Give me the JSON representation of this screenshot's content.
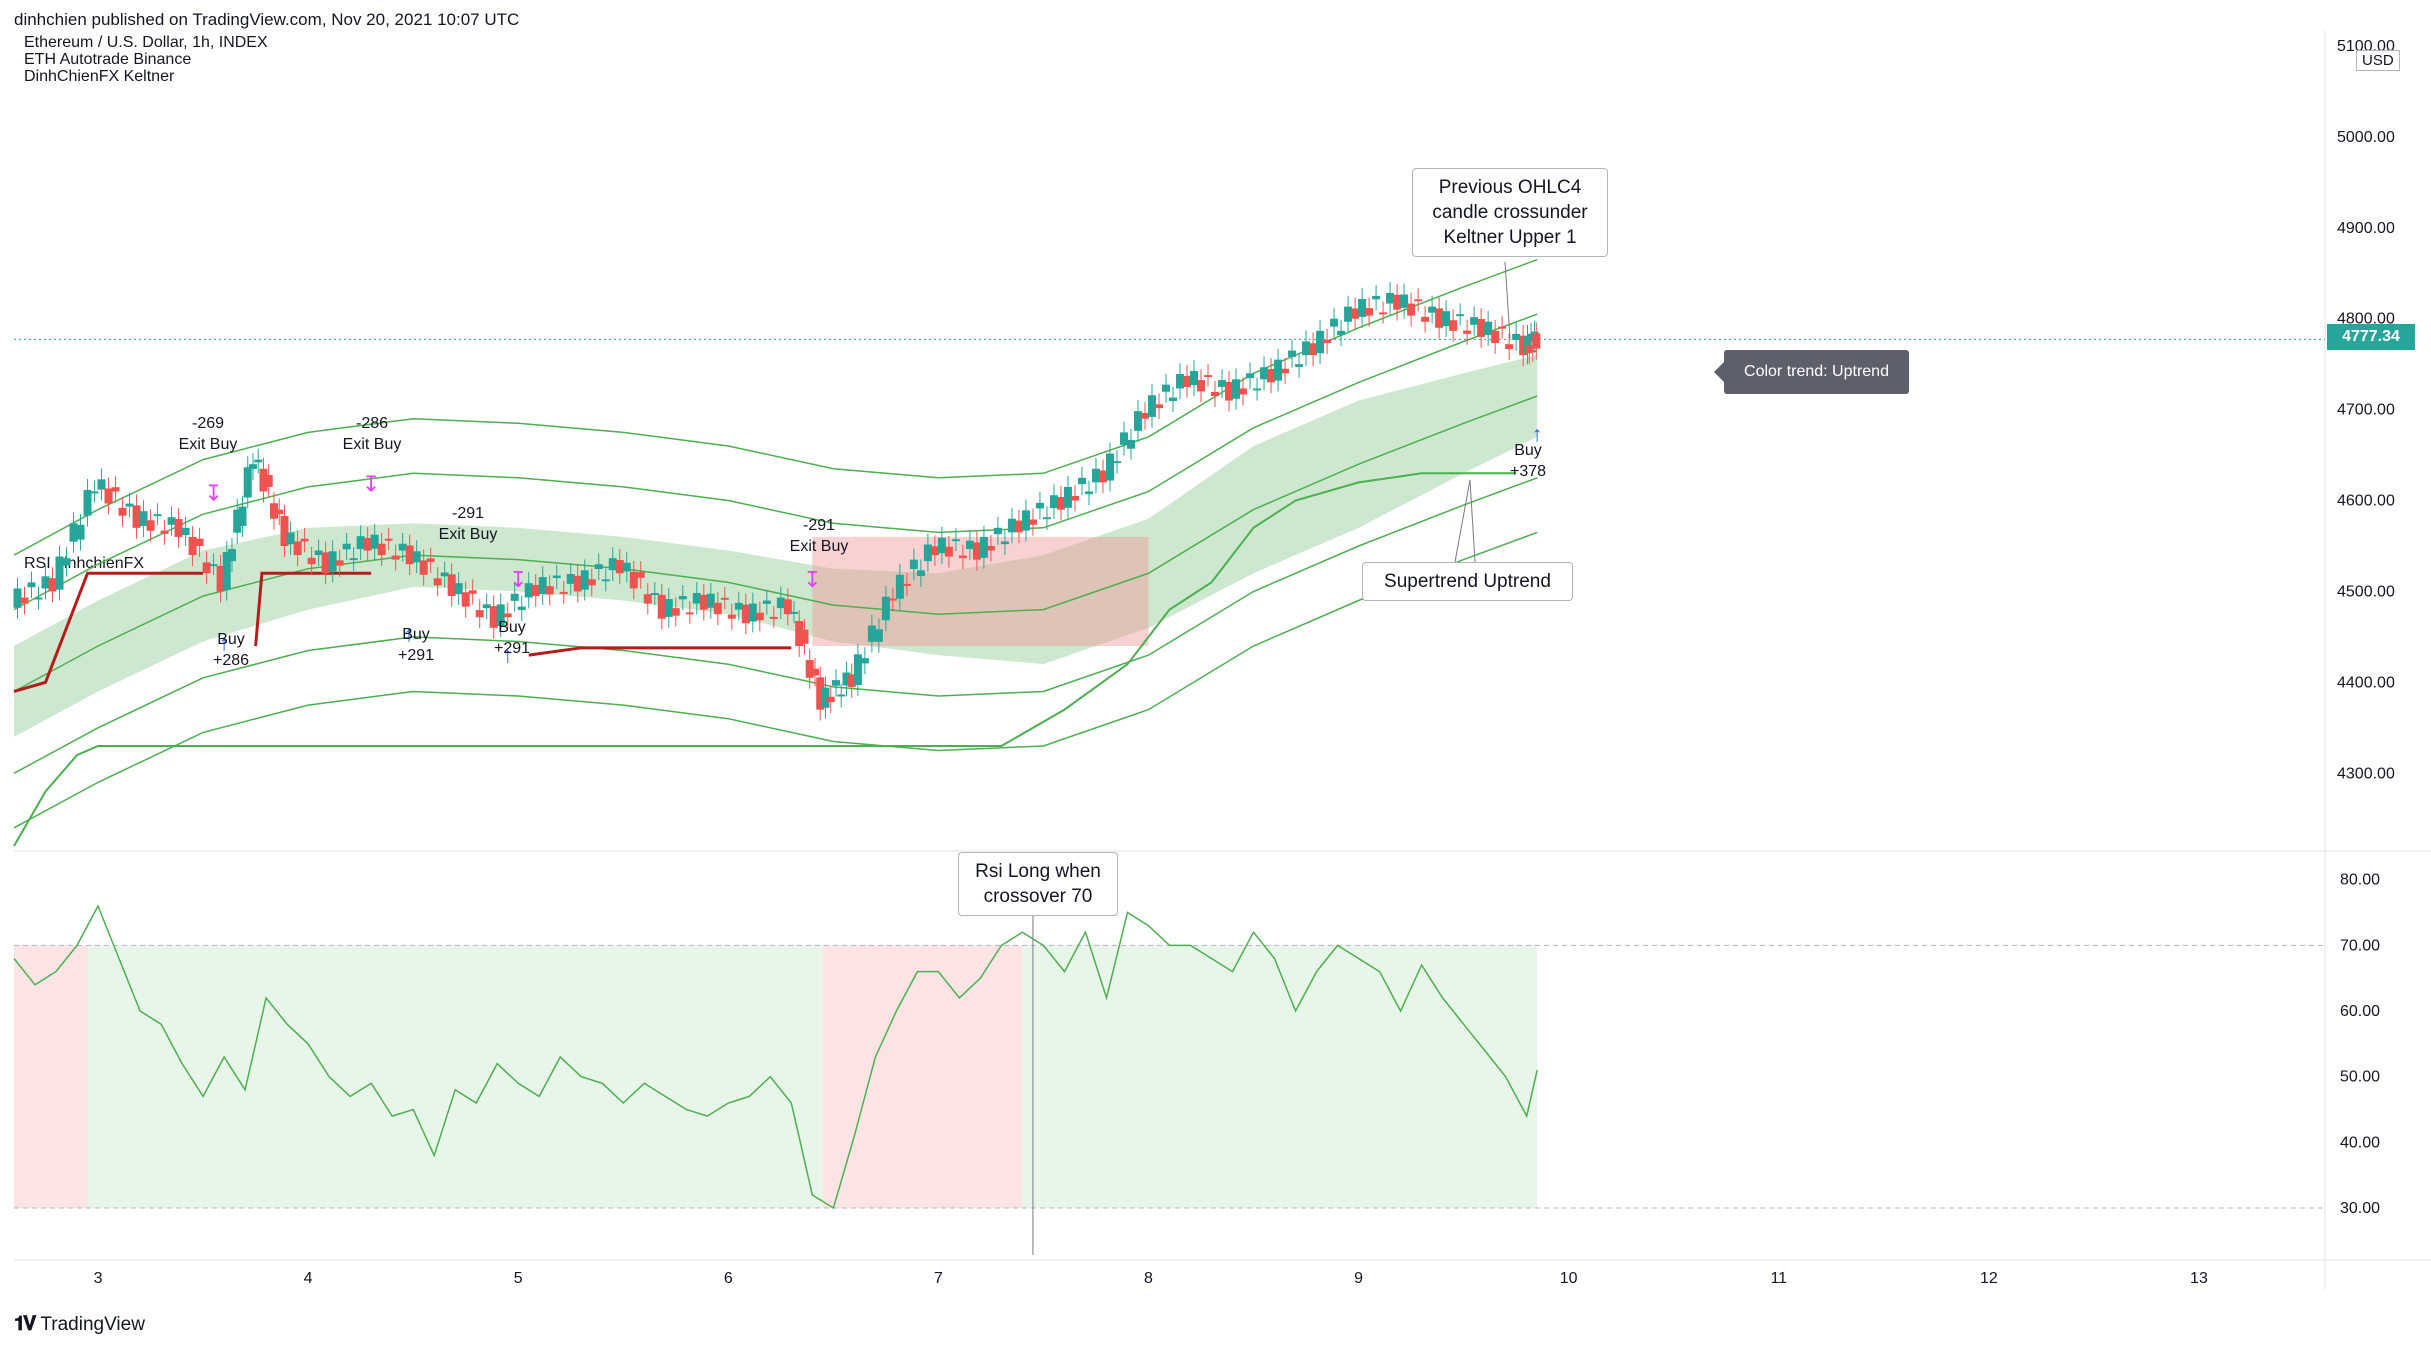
{
  "header": {
    "publisher_line": "dinhchien published on TradingView.com, Nov 20, 2021 10:07 UTC"
  },
  "legend": {
    "symbol": "Ethereum / U.S. Dollar, 1h, INDEX",
    "strategy": "ETH Autotrade Binance",
    "indicator": "DinhChienFX Keltner",
    "rsi_title": "RSI dinhchienFX"
  },
  "price_axis": {
    "currency": "USD",
    "last_price": "4777.34"
  },
  "annotations": {
    "ohlc4_note": "Previous OHLC4 candle crossunder Keltner Upper 1",
    "supertrend_note": "Supertrend Uptrend",
    "rsi_note": "Rsi Long when crossover 70",
    "color_trend": "Color trend: Uptrend"
  },
  "trades": [
    {
      "pnl": "-269",
      "action": "Exit Buy"
    },
    {
      "pnl": "-286",
      "action": "Exit Buy"
    },
    {
      "pnl": "-291",
      "action": "Exit Buy"
    },
    {
      "pnl": "-291",
      "action": "Exit Buy"
    },
    {
      "action": "Buy",
      "pnl": "+286"
    },
    {
      "action": "Buy",
      "pnl": "+291"
    },
    {
      "action": "Buy",
      "pnl": "+291"
    },
    {
      "action": "Buy",
      "pnl": "+378"
    }
  ],
  "footer": {
    "brand": "TradingView"
  },
  "colors": {
    "up": "#26a69a",
    "down": "#ef5350",
    "band_green": "#a5d6a7",
    "band_red": "#ef9a9a",
    "line_green": "#4caf50",
    "line_red": "#b71c1c"
  },
  "chart_data": [
    {
      "type": "line",
      "title": "Ethereum / U.S. Dollar, 1h, INDEX",
      "xlabel": "",
      "ylabel": "USD",
      "ylim": [
        4220,
        5100
      ],
      "x_ticks": [
        "3",
        "4",
        "5",
        "6",
        "7",
        "8",
        "9",
        "10",
        "11",
        "12",
        "13"
      ],
      "y_ticks": [
        "5100.00",
        "5000.00",
        "4900.00",
        "4800.00",
        "4700.00",
        "4600.00",
        "4500.00",
        "4400.00",
        "4300.00"
      ],
      "x_range": [
        2.6,
        13.6
      ],
      "series": [
        {
          "name": "Price",
          "x": [
            2.6,
            2.8,
            3.0,
            3.2,
            3.4,
            3.6,
            3.75,
            3.9,
            4.1,
            4.3,
            4.5,
            4.7,
            4.9,
            5.1,
            5.3,
            5.5,
            5.7,
            5.9,
            6.1,
            6.3,
            6.45,
            6.6,
            6.8,
            7.0,
            7.2,
            7.4,
            7.6,
            7.8,
            8.0,
            8.2,
            8.4,
            8.6,
            8.8,
            9.0,
            9.2,
            9.4,
            9.6,
            9.8,
            9.85
          ],
          "values": [
            4490,
            4510,
            4620,
            4580,
            4570,
            4510,
            4650,
            4560,
            4530,
            4555,
            4540,
            4505,
            4470,
            4505,
            4510,
            4530,
            4480,
            4490,
            4475,
            4485,
            4380,
            4405,
            4500,
            4550,
            4545,
            4575,
            4600,
            4630,
            4700,
            4735,
            4720,
            4740,
            4770,
            4810,
            4820,
            4800,
            4790,
            4770,
            4777
          ]
        },
        {
          "name": "Keltner Basis",
          "x": [
            2.6,
            3.0,
            3.5,
            4.0,
            4.5,
            5.0,
            5.5,
            6.0,
            6.5,
            7.0,
            7.5,
            8.0,
            8.5,
            9.0,
            9.5,
            9.85
          ],
          "values": [
            4390,
            4440,
            4495,
            4525,
            4540,
            4535,
            4525,
            4510,
            4485,
            4475,
            4480,
            4520,
            4590,
            4640,
            4685,
            4715
          ]
        },
        {
          "name": "Keltner Upper 1",
          "x": [
            2.6,
            3.0,
            3.5,
            4.0,
            4.5,
            5.0,
            5.5,
            6.0,
            6.5,
            7.0,
            7.5,
            8.0,
            8.5,
            9.0,
            9.5,
            9.85
          ],
          "values": [
            4440,
            4490,
            4545,
            4570,
            4575,
            4570,
            4560,
            4545,
            4525,
            4520,
            4540,
            4580,
            4660,
            4710,
            4740,
            4760
          ]
        },
        {
          "name": "Supertrend",
          "x": [
            2.6,
            2.75,
            2.9,
            3.0,
            3.3,
            3.5,
            3.7,
            4.0,
            4.3,
            4.7,
            5.0,
            5.5,
            6.0,
            6.2,
            6.3,
            6.6,
            7.0,
            7.3,
            7.6,
            7.9,
            8.1,
            8.3,
            8.5,
            8.7,
            9.0,
            9.3,
            9.6,
            9.75
          ],
          "values": [
            4220,
            4280,
            4320,
            4330,
            4330,
            4330,
            4330,
            4330,
            4330,
            4330,
            4330,
            4330,
            4330,
            4330,
            4330,
            4330,
            4330,
            4330,
            4370,
            4420,
            4480,
            4510,
            4570,
            4600,
            4620,
            4630,
            4630,
            4630
          ]
        }
      ]
    },
    {
      "type": "line",
      "title": "RSI dinhchienFX",
      "xlabel": "",
      "ylabel": "",
      "ylim": [
        23,
        83
      ],
      "y_ticks": [
        "80.00",
        "70.00",
        "60.00",
        "50.00",
        "40.00",
        "30.00"
      ],
      "levels": [
        70,
        30
      ],
      "x_range": [
        2.6,
        13.6
      ],
      "series": [
        {
          "name": "RSI",
          "x": [
            2.6,
            2.7,
            2.8,
            2.9,
            3.0,
            3.1,
            3.2,
            3.3,
            3.4,
            3.5,
            3.6,
            3.7,
            3.8,
            3.9,
            4.0,
            4.1,
            4.2,
            4.3,
            4.4,
            4.5,
            4.6,
            4.7,
            4.8,
            4.9,
            5.0,
            5.1,
            5.2,
            5.3,
            5.4,
            5.5,
            5.6,
            5.7,
            5.8,
            5.9,
            6.0,
            6.1,
            6.2,
            6.3,
            6.4,
            6.5,
            6.6,
            6.7,
            6.8,
            6.9,
            7.0,
            7.1,
            7.2,
            7.3,
            7.4,
            7.5,
            7.6,
            7.7,
            7.8,
            7.9,
            8.0,
            8.1,
            8.2,
            8.3,
            8.4,
            8.5,
            8.6,
            8.7,
            8.8,
            8.9,
            9.0,
            9.1,
            9.2,
            9.3,
            9.4,
            9.5,
            9.6,
            9.7,
            9.8,
            9.85
          ],
          "values": [
            68,
            64,
            66,
            70,
            76,
            68,
            60,
            58,
            52,
            47,
            53,
            48,
            62,
            58,
            55,
            50,
            47,
            49,
            44,
            45,
            38,
            48,
            46,
            52,
            49,
            47,
            53,
            50,
            49,
            46,
            49,
            47,
            45,
            44,
            46,
            47,
            50,
            46,
            32,
            30,
            41,
            53,
            60,
            66,
            66,
            62,
            65,
            70,
            72,
            70,
            66,
            72,
            62,
            75,
            73,
            70,
            70,
            68,
            66,
            72,
            68,
            60,
            66,
            70,
            68,
            66,
            60,
            67,
            62,
            58,
            54,
            50,
            44,
            51
          ]
        }
      ]
    }
  ]
}
